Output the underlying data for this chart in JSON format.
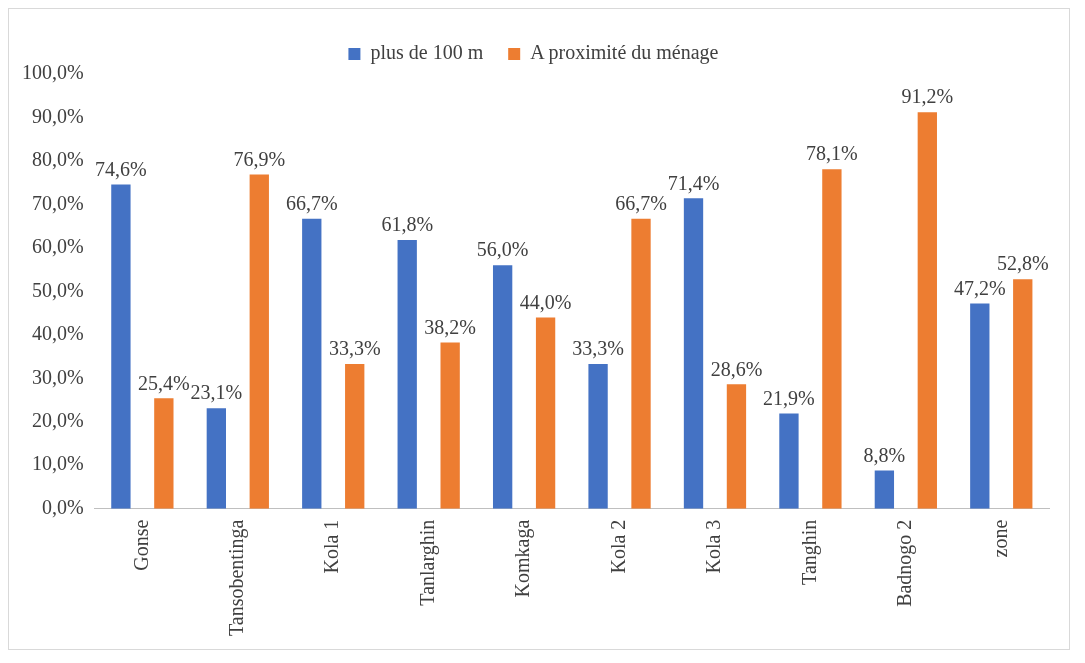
{
  "chart_data": {
    "type": "bar",
    "categories": [
      "Gonse",
      "Tansobentinga",
      "Kola 1",
      "Tanlarghin",
      "Komkaga",
      "Kola 2",
      "Kola 3",
      "Tanghin",
      "Badnogo 2",
      "zone"
    ],
    "series": [
      {
        "name": "plus de 100 m",
        "color": "#4472c4",
        "values": [
          74.6,
          23.1,
          66.7,
          61.8,
          56.0,
          33.3,
          71.4,
          21.9,
          8.8,
          47.2
        ],
        "value_labels": [
          "74,6%",
          "23,1%",
          "66,7%",
          "61,8%",
          "56,0%",
          "33,3%",
          "71,4%",
          "21,9%",
          "8,8%",
          "47,2%"
        ]
      },
      {
        "name": "A proximité du ménage",
        "color": "#ed7d31",
        "values": [
          25.4,
          76.9,
          33.3,
          38.2,
          44.0,
          66.7,
          28.6,
          78.1,
          91.2,
          52.8
        ],
        "value_labels": [
          "25,4%",
          "76,9%",
          "33,3%",
          "38,2%",
          "44,0%",
          "66,7%",
          "28,6%",
          "78,1%",
          "91,2%",
          "52,8%"
        ]
      }
    ],
    "ylim": [
      0,
      100
    ],
    "yticks": [
      {
        "value": 0,
        "label": "0,0%"
      },
      {
        "value": 10,
        "label": "10,0%"
      },
      {
        "value": 20,
        "label": "20,0%"
      },
      {
        "value": 30,
        "label": "30,0%"
      },
      {
        "value": 40,
        "label": "40,0%"
      },
      {
        "value": 50,
        "label": "50,0%"
      },
      {
        "value": 60,
        "label": "60,0%"
      },
      {
        "value": 70,
        "label": "70,0%"
      },
      {
        "value": 80,
        "label": "80,0%"
      },
      {
        "value": 90,
        "label": "90,0%"
      },
      {
        "value": 100,
        "label": "100,0%"
      }
    ],
    "grid": false,
    "legend": "top"
  }
}
